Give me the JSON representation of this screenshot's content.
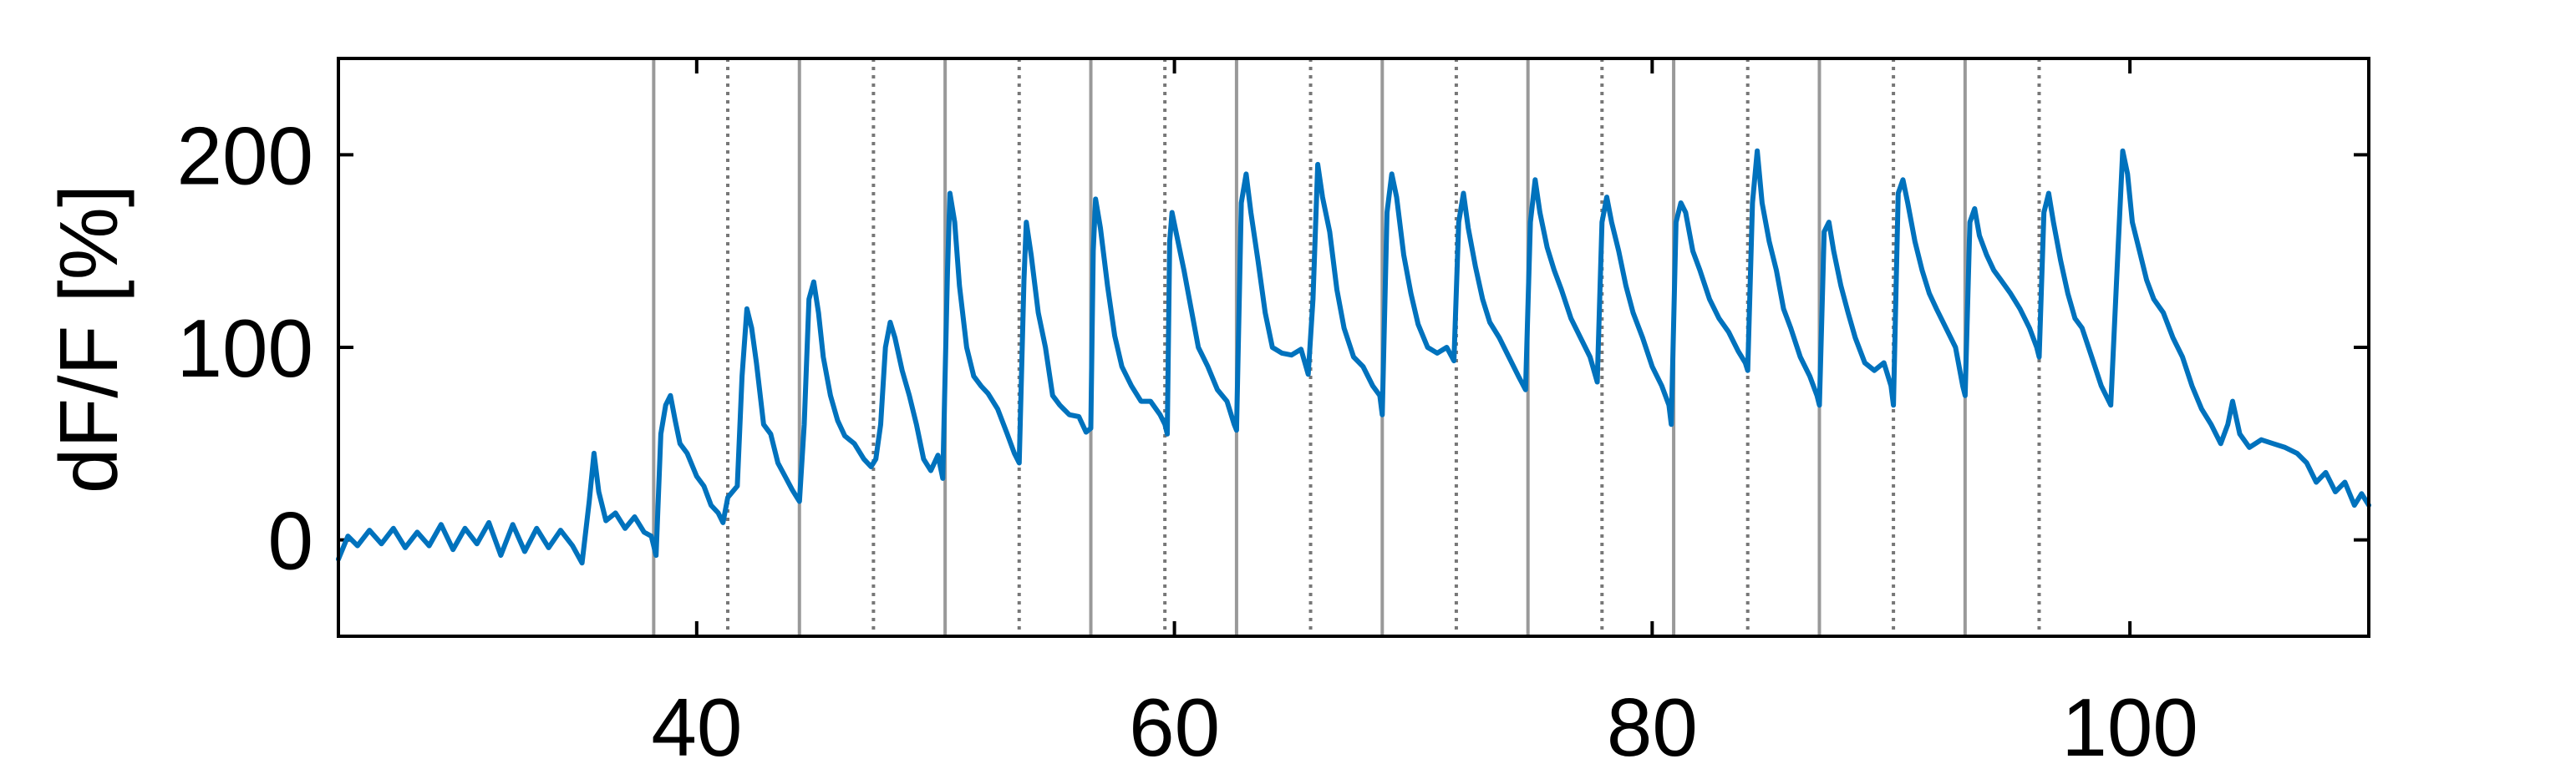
{
  "chart_data": {
    "type": "line",
    "title": "",
    "xlabel": "",
    "ylabel": "dF/F [%]",
    "xlim": [
      25,
      110
    ],
    "ylim": [
      -50,
      250
    ],
    "x_ticks": [
      40,
      60,
      80,
      100
    ],
    "y_ticks": [
      0,
      100,
      200
    ],
    "x_tick_labels": [
      "40",
      "60",
      "80",
      "100"
    ],
    "y_tick_labels": [
      "0",
      "100",
      "200"
    ],
    "grid": false,
    "colors": {
      "series": "#0072BD",
      "solid_marker": "#999999",
      "dotted_marker": "#777777",
      "axis": "#000000"
    },
    "event_lines": {
      "solid": [
        38.2,
        44.3,
        50.4,
        56.5,
        62.6,
        68.7,
        74.8,
        80.9,
        87.0,
        93.1
      ],
      "dotted": [
        41.3,
        47.4,
        53.5,
        59.6,
        65.7,
        71.8,
        77.9,
        84.0,
        90.1,
        96.2
      ]
    },
    "series": [
      {
        "name": "",
        "points": [
          [
            25.0,
            -10
          ],
          [
            25.4,
            2
          ],
          [
            25.8,
            -3
          ],
          [
            26.3,
            5
          ],
          [
            26.8,
            -2
          ],
          [
            27.3,
            6
          ],
          [
            27.8,
            -4
          ],
          [
            28.3,
            4
          ],
          [
            28.8,
            -3
          ],
          [
            29.3,
            8
          ],
          [
            29.8,
            -5
          ],
          [
            30.3,
            6
          ],
          [
            30.8,
            -2
          ],
          [
            31.3,
            9
          ],
          [
            31.8,
            -8
          ],
          [
            32.3,
            8
          ],
          [
            32.8,
            -6
          ],
          [
            33.3,
            6
          ],
          [
            33.8,
            -4
          ],
          [
            34.3,
            5
          ],
          [
            34.8,
            -3
          ],
          [
            35.2,
            -12
          ],
          [
            35.5,
            20
          ],
          [
            35.7,
            45
          ],
          [
            35.9,
            25
          ],
          [
            36.2,
            10
          ],
          [
            36.6,
            14
          ],
          [
            37.0,
            6
          ],
          [
            37.4,
            12
          ],
          [
            37.8,
            4
          ],
          [
            38.1,
            2
          ],
          [
            38.3,
            -8
          ],
          [
            38.5,
            55
          ],
          [
            38.7,
            70
          ],
          [
            38.9,
            75
          ],
          [
            39.1,
            62
          ],
          [
            39.3,
            50
          ],
          [
            39.6,
            45
          ],
          [
            40.0,
            33
          ],
          [
            40.3,
            28
          ],
          [
            40.6,
            18
          ],
          [
            40.9,
            14
          ],
          [
            41.1,
            9
          ],
          [
            41.3,
            22
          ],
          [
            41.5,
            25
          ],
          [
            41.7,
            28
          ],
          [
            41.9,
            85
          ],
          [
            42.1,
            120
          ],
          [
            42.3,
            110
          ],
          [
            42.5,
            92
          ],
          [
            42.8,
            60
          ],
          [
            43.1,
            55
          ],
          [
            43.4,
            40
          ],
          [
            43.7,
            33
          ],
          [
            44.0,
            26
          ],
          [
            44.2,
            22
          ],
          [
            44.3,
            20
          ],
          [
            44.5,
            60
          ],
          [
            44.7,
            125
          ],
          [
            44.9,
            134
          ],
          [
            45.1,
            118
          ],
          [
            45.3,
            95
          ],
          [
            45.6,
            75
          ],
          [
            45.9,
            62
          ],
          [
            46.2,
            54
          ],
          [
            46.6,
            50
          ],
          [
            47.0,
            42
          ],
          [
            47.3,
            38
          ],
          [
            47.5,
            42
          ],
          [
            47.7,
            60
          ],
          [
            47.9,
            100
          ],
          [
            48.1,
            113
          ],
          [
            48.3,
            105
          ],
          [
            48.6,
            88
          ],
          [
            48.9,
            75
          ],
          [
            49.2,
            60
          ],
          [
            49.5,
            42
          ],
          [
            49.8,
            36
          ],
          [
            50.1,
            44
          ],
          [
            50.3,
            32
          ],
          [
            50.5,
            140
          ],
          [
            50.6,
            180
          ],
          [
            50.8,
            165
          ],
          [
            51.0,
            132
          ],
          [
            51.3,
            100
          ],
          [
            51.6,
            85
          ],
          [
            51.9,
            80
          ],
          [
            52.2,
            76
          ],
          [
            52.6,
            68
          ],
          [
            53.0,
            55
          ],
          [
            53.3,
            45
          ],
          [
            53.5,
            40
          ],
          [
            53.7,
            135
          ],
          [
            53.8,
            165
          ],
          [
            54.0,
            148
          ],
          [
            54.3,
            118
          ],
          [
            54.6,
            100
          ],
          [
            54.9,
            75
          ],
          [
            55.2,
            70
          ],
          [
            55.6,
            65
          ],
          [
            56.0,
            64
          ],
          [
            56.3,
            56
          ],
          [
            56.5,
            58
          ],
          [
            56.6,
            150
          ],
          [
            56.7,
            177
          ],
          [
            56.9,
            162
          ],
          [
            57.2,
            132
          ],
          [
            57.5,
            106
          ],
          [
            57.8,
            90
          ],
          [
            58.2,
            80
          ],
          [
            58.6,
            72
          ],
          [
            59.0,
            72
          ],
          [
            59.4,
            65
          ],
          [
            59.6,
            60
          ],
          [
            59.7,
            55
          ],
          [
            59.8,
            155
          ],
          [
            59.9,
            170
          ],
          [
            60.1,
            158
          ],
          [
            60.4,
            140
          ],
          [
            60.7,
            120
          ],
          [
            61.0,
            100
          ],
          [
            61.4,
            90
          ],
          [
            61.8,
            78
          ],
          [
            62.2,
            72
          ],
          [
            62.5,
            60
          ],
          [
            62.6,
            57
          ],
          [
            62.8,
            175
          ],
          [
            63.0,
            190
          ],
          [
            63.2,
            170
          ],
          [
            63.5,
            145
          ],
          [
            63.8,
            118
          ],
          [
            64.1,
            100
          ],
          [
            64.5,
            97
          ],
          [
            64.9,
            96
          ],
          [
            65.3,
            99
          ],
          [
            65.6,
            86
          ],
          [
            65.8,
            125
          ],
          [
            66.0,
            195
          ],
          [
            66.2,
            178
          ],
          [
            66.5,
            160
          ],
          [
            66.8,
            130
          ],
          [
            67.1,
            110
          ],
          [
            67.5,
            95
          ],
          [
            67.9,
            90
          ],
          [
            68.3,
            80
          ],
          [
            68.6,
            75
          ],
          [
            68.7,
            65
          ],
          [
            68.9,
            170
          ],
          [
            69.1,
            190
          ],
          [
            69.3,
            178
          ],
          [
            69.6,
            148
          ],
          [
            69.9,
            128
          ],
          [
            70.2,
            112
          ],
          [
            70.6,
            100
          ],
          [
            71.0,
            97
          ],
          [
            71.4,
            100
          ],
          [
            71.7,
            93
          ],
          [
            71.9,
            165
          ],
          [
            72.1,
            180
          ],
          [
            72.3,
            162
          ],
          [
            72.6,
            142
          ],
          [
            72.9,
            125
          ],
          [
            73.2,
            113
          ],
          [
            73.6,
            105
          ],
          [
            74.0,
            95
          ],
          [
            74.4,
            85
          ],
          [
            74.7,
            78
          ],
          [
            74.9,
            165
          ],
          [
            75.1,
            187
          ],
          [
            75.3,
            170
          ],
          [
            75.6,
            152
          ],
          [
            75.9,
            140
          ],
          [
            76.2,
            130
          ],
          [
            76.6,
            115
          ],
          [
            77.0,
            105
          ],
          [
            77.4,
            95
          ],
          [
            77.7,
            82
          ],
          [
            77.9,
            165
          ],
          [
            78.1,
            178
          ],
          [
            78.3,
            165
          ],
          [
            78.6,
            150
          ],
          [
            78.9,
            132
          ],
          [
            79.2,
            118
          ],
          [
            79.6,
            105
          ],
          [
            80.0,
            90
          ],
          [
            80.4,
            80
          ],
          [
            80.7,
            70
          ],
          [
            80.8,
            60
          ],
          [
            81.0,
            165
          ],
          [
            81.2,
            175
          ],
          [
            81.4,
            170
          ],
          [
            81.7,
            150
          ],
          [
            82.0,
            140
          ],
          [
            82.4,
            125
          ],
          [
            82.8,
            115
          ],
          [
            83.2,
            108
          ],
          [
            83.6,
            98
          ],
          [
            83.9,
            92
          ],
          [
            84.0,
            88
          ],
          [
            84.2,
            175
          ],
          [
            84.4,
            202
          ],
          [
            84.6,
            175
          ],
          [
            84.9,
            155
          ],
          [
            85.2,
            140
          ],
          [
            85.5,
            120
          ],
          [
            85.8,
            110
          ],
          [
            86.2,
            95
          ],
          [
            86.6,
            85
          ],
          [
            86.9,
            75
          ],
          [
            87.0,
            70
          ],
          [
            87.2,
            160
          ],
          [
            87.4,
            165
          ],
          [
            87.6,
            150
          ],
          [
            87.9,
            132
          ],
          [
            88.2,
            118
          ],
          [
            88.5,
            105
          ],
          [
            88.9,
            92
          ],
          [
            89.3,
            88
          ],
          [
            89.7,
            92
          ],
          [
            90.0,
            80
          ],
          [
            90.1,
            70
          ],
          [
            90.3,
            180
          ],
          [
            90.5,
            187
          ],
          [
            90.7,
            175
          ],
          [
            91.0,
            155
          ],
          [
            91.3,
            140
          ],
          [
            91.6,
            128
          ],
          [
            91.9,
            120
          ],
          [
            92.3,
            110
          ],
          [
            92.7,
            100
          ],
          [
            93.0,
            80
          ],
          [
            93.1,
            75
          ],
          [
            93.3,
            165
          ],
          [
            93.5,
            172
          ],
          [
            93.7,
            158
          ],
          [
            94.0,
            148
          ],
          [
            94.3,
            140
          ],
          [
            94.6,
            135
          ],
          [
            95.0,
            128
          ],
          [
            95.4,
            120
          ],
          [
            95.8,
            110
          ],
          [
            96.1,
            100
          ],
          [
            96.2,
            95
          ],
          [
            96.4,
            170
          ],
          [
            96.6,
            180
          ],
          [
            96.8,
            165
          ],
          [
            97.1,
            145
          ],
          [
            97.4,
            128
          ],
          [
            97.7,
            115
          ],
          [
            98.0,
            110
          ],
          [
            98.4,
            95
          ],
          [
            98.8,
            80
          ],
          [
            99.2,
            70
          ],
          [
            99.5,
            150
          ],
          [
            99.7,
            202
          ],
          [
            99.9,
            190
          ],
          [
            100.1,
            165
          ],
          [
            100.4,
            150
          ],
          [
            100.7,
            135
          ],
          [
            101.0,
            125
          ],
          [
            101.4,
            118
          ],
          [
            101.8,
            105
          ],
          [
            102.2,
            95
          ],
          [
            102.6,
            80
          ],
          [
            103.0,
            68
          ],
          [
            103.4,
            60
          ],
          [
            103.8,
            50
          ],
          [
            104.1,
            60
          ],
          [
            104.3,
            72
          ],
          [
            104.6,
            55
          ],
          [
            105.0,
            48
          ],
          [
            105.5,
            52
          ],
          [
            106.0,
            50
          ],
          [
            106.5,
            48
          ],
          [
            107.0,
            45
          ],
          [
            107.4,
            40
          ],
          [
            107.8,
            30
          ],
          [
            108.2,
            35
          ],
          [
            108.6,
            25
          ],
          [
            109.0,
            30
          ],
          [
            109.4,
            18
          ],
          [
            109.7,
            24
          ],
          [
            110.0,
            18
          ]
        ]
      }
    ]
  }
}
